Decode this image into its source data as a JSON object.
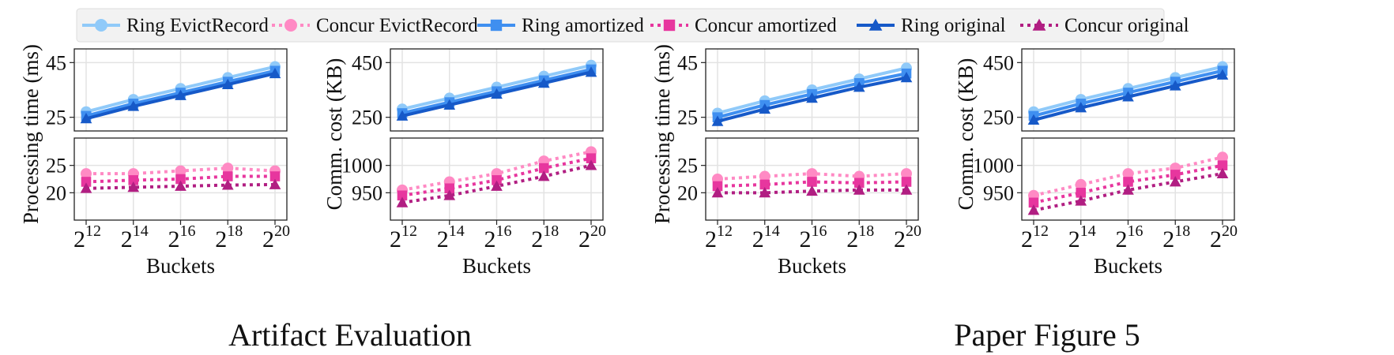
{
  "legend": {
    "items": [
      {
        "key": "ring_evict",
        "label": "Ring EvictRecord",
        "color": "#90caf9",
        "marker": "circle",
        "dash": "solid"
      },
      {
        "key": "concur_evict",
        "label": "Concur EvictRecord",
        "color": "#ff8ac4",
        "marker": "circle",
        "dash": "dotted"
      },
      {
        "key": "ring_amort",
        "label": "Ring amortized",
        "color": "#3f8ff0",
        "marker": "square",
        "dash": "solid"
      },
      {
        "key": "concur_amort",
        "label": "Concur amortized",
        "color": "#e7369e",
        "marker": "square",
        "dash": "dotted"
      },
      {
        "key": "ring_orig",
        "label": "Ring original",
        "color": "#1659c8",
        "marker": "triangle",
        "dash": "solid"
      },
      {
        "key": "concur_orig",
        "label": "Concur original",
        "color": "#b11e82",
        "marker": "triangle",
        "dash": "dotted"
      }
    ]
  },
  "groups": [
    {
      "title": "Artifact Evaluation"
    },
    {
      "title": "Paper Figure 5"
    }
  ],
  "x_axis": {
    "label": "Buckets",
    "base": "2",
    "exponents": [
      "12",
      "14",
      "16",
      "18",
      "20"
    ]
  },
  "y_labels": {
    "time": "Processing time (ms)",
    "comm": "Comm. cost (KB)"
  },
  "chart_data": [
    {
      "type": "line",
      "group": "Artifact Evaluation",
      "metric": "time",
      "panel": "top",
      "x": [
        4096,
        16384,
        65536,
        262144,
        1048576
      ],
      "x_scale": "log2",
      "ylim": [
        20,
        50
      ],
      "yticks": [
        25,
        45
      ],
      "grid": true,
      "series": [
        {
          "name": "Ring EvictRecord",
          "key": "ring_evict",
          "values": [
            27,
            31.5,
            35.5,
            39.5,
            43.5
          ]
        },
        {
          "name": "Ring amortized",
          "key": "ring_amort",
          "values": [
            25.5,
            30,
            34,
            38,
            42
          ]
        },
        {
          "name": "Ring original",
          "key": "ring_orig",
          "values": [
            24.5,
            29,
            33,
            37,
            41
          ]
        }
      ]
    },
    {
      "type": "line",
      "group": "Artifact Evaluation",
      "metric": "time",
      "panel": "bottom",
      "x": [
        4096,
        16384,
        65536,
        262144,
        1048576
      ],
      "x_scale": "log2",
      "ylim": [
        15,
        30
      ],
      "yticks": [
        20,
        25
      ],
      "grid": true,
      "series": [
        {
          "name": "Concur EvictRecord",
          "key": "concur_evict",
          "values": [
            23.5,
            23.5,
            24,
            24.5,
            24
          ]
        },
        {
          "name": "Concur amortized",
          "key": "concur_amort",
          "values": [
            22,
            22.3,
            22.5,
            23,
            23
          ]
        },
        {
          "name": "Concur original",
          "key": "concur_orig",
          "values": [
            20.8,
            21,
            21.2,
            21.4,
            21.5
          ]
        }
      ]
    },
    {
      "type": "line",
      "group": "Artifact Evaluation",
      "metric": "comm",
      "panel": "top",
      "x": [
        4096,
        16384,
        65536,
        262144,
        1048576
      ],
      "x_scale": "log2",
      "ylim": [
        200,
        500
      ],
      "yticks": [
        250,
        450
      ],
      "grid": true,
      "series": [
        {
          "name": "Ring EvictRecord",
          "key": "ring_evict",
          "values": [
            280,
            320,
            360,
            400,
            440
          ]
        },
        {
          "name": "Ring amortized",
          "key": "ring_amort",
          "values": [
            265,
            305,
            345,
            385,
            425
          ]
        },
        {
          "name": "Ring original",
          "key": "ring_orig",
          "values": [
            255,
            295,
            335,
            375,
            415
          ]
        }
      ]
    },
    {
      "type": "line",
      "group": "Artifact Evaluation",
      "metric": "comm",
      "panel": "bottom",
      "x": [
        4096,
        16384,
        65536,
        262144,
        1048576
      ],
      "x_scale": "log2",
      "ylim": [
        900,
        1050
      ],
      "yticks": [
        950,
        1000
      ],
      "grid": true,
      "series": [
        {
          "name": "Concur EvictRecord",
          "key": "concur_evict",
          "values": [
            955,
            970,
            985,
            1008,
            1025
          ]
        },
        {
          "name": "Concur amortized",
          "key": "concur_amort",
          "values": [
            945,
            958,
            973,
            995,
            1013
          ]
        },
        {
          "name": "Concur original",
          "key": "concur_orig",
          "values": [
            932,
            945,
            962,
            980,
            1000
          ]
        }
      ]
    },
    {
      "type": "line",
      "group": "Paper Figure 5",
      "metric": "time",
      "panel": "top",
      "x": [
        4096,
        16384,
        65536,
        262144,
        1048576
      ],
      "x_scale": "log2",
      "ylim": [
        20,
        50
      ],
      "yticks": [
        25,
        45
      ],
      "grid": true,
      "series": [
        {
          "name": "Ring EvictRecord",
          "key": "ring_evict",
          "values": [
            26.5,
            31,
            35,
            39,
            43
          ]
        },
        {
          "name": "Ring amortized",
          "key": "ring_amort",
          "values": [
            25,
            29.5,
            33.5,
            37.5,
            41
          ]
        },
        {
          "name": "Ring original",
          "key": "ring_orig",
          "values": [
            23.5,
            28,
            32,
            36,
            39.5
          ]
        }
      ]
    },
    {
      "type": "line",
      "group": "Paper Figure 5",
      "metric": "time",
      "panel": "bottom",
      "x": [
        4096,
        16384,
        65536,
        262144,
        1048576
      ],
      "x_scale": "log2",
      "ylim": [
        15,
        30
      ],
      "yticks": [
        20,
        25
      ],
      "grid": true,
      "series": [
        {
          "name": "Concur EvictRecord",
          "key": "concur_evict",
          "values": [
            22.5,
            23,
            23.5,
            23,
            23.5
          ]
        },
        {
          "name": "Concur amortized",
          "key": "concur_amort",
          "values": [
            21.2,
            21.5,
            22,
            21.8,
            22
          ]
        },
        {
          "name": "Concur original",
          "key": "concur_orig",
          "values": [
            20,
            20,
            20.3,
            20.5,
            20.5
          ]
        }
      ]
    },
    {
      "type": "line",
      "group": "Paper Figure 5",
      "metric": "comm",
      "panel": "top",
      "x": [
        4096,
        16384,
        65536,
        262144,
        1048576
      ],
      "x_scale": "log2",
      "ylim": [
        200,
        500
      ],
      "yticks": [
        250,
        450
      ],
      "grid": true,
      "series": [
        {
          "name": "Ring EvictRecord",
          "key": "ring_evict",
          "values": [
            270,
            315,
            355,
            395,
            435
          ]
        },
        {
          "name": "Ring amortized",
          "key": "ring_amort",
          "values": [
            255,
            300,
            340,
            380,
            420
          ]
        },
        {
          "name": "Ring original",
          "key": "ring_orig",
          "values": [
            240,
            285,
            325,
            365,
            405
          ]
        }
      ]
    },
    {
      "type": "line",
      "group": "Paper Figure 5",
      "metric": "comm",
      "panel": "bottom",
      "x": [
        4096,
        16384,
        65536,
        262144,
        1048576
      ],
      "x_scale": "log2",
      "ylim": [
        900,
        1050
      ],
      "yticks": [
        950,
        1000
      ],
      "grid": true,
      "series": [
        {
          "name": "Concur EvictRecord",
          "key": "concur_evict",
          "values": [
            945,
            965,
            985,
            995,
            1015
          ]
        },
        {
          "name": "Concur amortized",
          "key": "concur_amort",
          "values": [
            932,
            950,
            970,
            983,
            1000
          ]
        },
        {
          "name": "Concur original",
          "key": "concur_orig",
          "values": [
            918,
            935,
            955,
            970,
            985
          ]
        }
      ]
    }
  ]
}
